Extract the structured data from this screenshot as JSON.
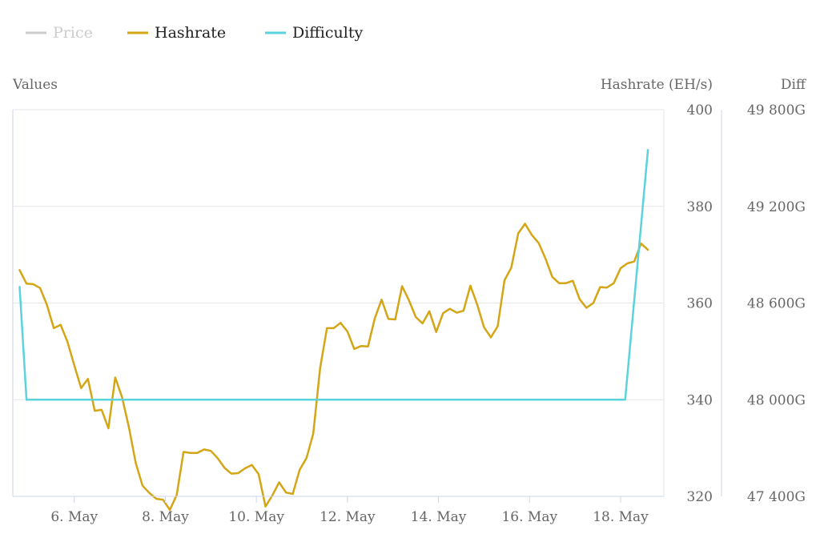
{
  "legend": {
    "items": [
      {
        "label": "Price",
        "color": "#cccccc",
        "active": false
      },
      {
        "label": "Hashrate",
        "color": "#d4a514",
        "active": true
      },
      {
        "label": "Difficulty",
        "color": "#5bd3de",
        "active": true
      }
    ]
  },
  "chart_data": {
    "type": "line",
    "left_axis_label": "Values",
    "right_axis_label_hashrate": "Hashrate (EH/s)",
    "right_axis_label_diff": "Diff",
    "hashrate_ticks": [
      "320",
      "340",
      "360",
      "380",
      "400"
    ],
    "hashrate_ylim": [
      320,
      400
    ],
    "difficulty_ticks": [
      "47 400G",
      "48 000G",
      "48 600G",
      "49 200G",
      "49 800G"
    ],
    "difficulty_ylim": [
      47400,
      49800
    ],
    "x_ticks": [
      "6. May",
      "8. May",
      "10. May",
      "12. May",
      "14. May",
      "16. May",
      "18. May"
    ],
    "x_tick_days": [
      6,
      8,
      10,
      12,
      14,
      16,
      18
    ],
    "xlim_days": [
      4.65,
      18.95
    ],
    "grid": true,
    "series": [
      {
        "name": "Hashrate",
        "color": "#d4a514",
        "x_days": [
          4.8,
          4.95,
          5.1,
          5.25,
          5.4,
          5.55,
          5.7,
          5.85,
          6.0,
          6.15,
          6.3,
          6.45,
          6.6,
          6.75,
          6.9,
          7.05,
          7.2,
          7.35,
          7.5,
          7.65,
          7.8,
          7.95,
          8.1,
          8.25,
          8.4,
          8.55,
          8.7,
          8.85,
          9.0,
          9.15,
          9.3,
          9.45,
          9.6,
          9.75,
          9.9,
          10.05,
          10.2,
          10.35,
          10.5,
          10.65,
          10.8,
          10.95,
          11.1,
          11.25,
          11.4,
          11.55,
          11.7,
          11.85,
          12.0,
          12.15,
          12.3,
          12.45,
          12.6,
          12.75,
          12.9,
          13.05,
          13.2,
          13.35,
          13.5,
          13.65,
          13.8,
          13.95,
          14.1,
          14.25,
          14.4,
          14.55,
          14.7,
          14.85,
          15.0,
          15.15,
          15.3,
          15.45,
          15.6,
          15.75,
          15.9,
          16.05,
          16.2,
          16.35,
          16.5,
          16.65,
          16.8,
          16.95,
          17.1,
          17.25,
          17.4,
          17.55,
          17.7,
          17.85,
          18.0,
          18.15,
          18.3,
          18.45,
          18.6
        ],
        "values": [
          366.8,
          364,
          363.9,
          363.1,
          359.6,
          354.8,
          355.5,
          352,
          347.1,
          342.4,
          344.3,
          337.7,
          337.9,
          334.1,
          344.6,
          340.5,
          334.3,
          326.9,
          322.2,
          320.7,
          319.5,
          319.3,
          317.2,
          320.3,
          329.2,
          329,
          329,
          329.7,
          329.4,
          327.9,
          325.9,
          324.7,
          324.8,
          325.8,
          326.5,
          324.6,
          317.9,
          320.2,
          322.9,
          320.8,
          320.5,
          325.5,
          327.9,
          333,
          346.6,
          354.8,
          354.8,
          355.9,
          354.1,
          350.5,
          351.1,
          351,
          356.8,
          360.7,
          356.7,
          356.6,
          363.5,
          360.6,
          357.1,
          355.8,
          358.3,
          354,
          357.9,
          358.8,
          358,
          358.4,
          363.6,
          359.7,
          355,
          352.9,
          355.2,
          364.7,
          367.3,
          374.4,
          376.4,
          374.1,
          372.4,
          369.2,
          365.4,
          364.1,
          364.1,
          364.6,
          360.8,
          359,
          360,
          363.3,
          363.2,
          364.1,
          367.2,
          368.2,
          368.6,
          372.3,
          371
        ]
      },
      {
        "name": "Difficulty",
        "color": "#5bd3de",
        "x_days": [
          4.8,
          4.95,
          18.1,
          18.1,
          18.6,
          18.6
        ],
        "values": [
          48700,
          48000,
          48000,
          48000,
          49550,
          49550
        ]
      }
    ]
  }
}
